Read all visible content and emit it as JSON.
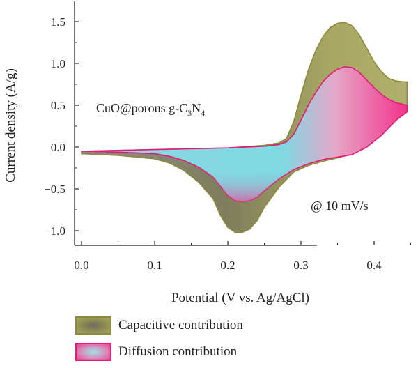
{
  "chart_data": {
    "type": "area",
    "xlabel": "Potential (V vs. Ag/AgCl)",
    "ylabel": "Current density (A/g)",
    "xlim": [
      -0.01,
      0.46
    ],
    "ylim": [
      -1.15,
      1.65
    ],
    "x_ticks": [
      0.0,
      0.1,
      0.2,
      0.3,
      0.4
    ],
    "x_tick_labels": [
      "0.0",
      "0.1",
      "0.2",
      "0.3",
      "0.4"
    ],
    "y_ticks": [
      -1.0,
      -0.5,
      0.0,
      0.5,
      1.0,
      1.5
    ],
    "y_tick_labels": [
      "−1.0",
      "−0.5",
      "0.0",
      "0.5",
      "1.0",
      "1.5"
    ],
    "grid": false,
    "annotations": {
      "material": "CuO@porous g-C3N4",
      "material_parts": {
        "base": "CuO@porous g-C",
        "sub1": "3",
        "mid": "N",
        "sub2": "4"
      },
      "scan_rate": "@ 10 mV/s"
    },
    "series": [
      {
        "name": "Capacitive contribution",
        "color": "#a9a865",
        "stroke": "#8d8a3c",
        "anodic": [
          [
            0.0,
            -0.05
          ],
          [
            0.05,
            -0.04
          ],
          [
            0.1,
            -0.03
          ],
          [
            0.15,
            -0.02
          ],
          [
            0.2,
            -0.01
          ],
          [
            0.25,
            0.02
          ],
          [
            0.27,
            0.05
          ],
          [
            0.28,
            0.1
          ],
          [
            0.29,
            0.3
          ],
          [
            0.3,
            0.62
          ],
          [
            0.31,
            0.92
          ],
          [
            0.32,
            1.15
          ],
          [
            0.33,
            1.32
          ],
          [
            0.34,
            1.43
          ],
          [
            0.35,
            1.48
          ],
          [
            0.36,
            1.49
          ],
          [
            0.37,
            1.45
          ],
          [
            0.38,
            1.34
          ],
          [
            0.39,
            1.18
          ],
          [
            0.4,
            1.02
          ],
          [
            0.41,
            0.9
          ],
          [
            0.42,
            0.82
          ],
          [
            0.43,
            0.79
          ],
          [
            0.44,
            0.78
          ],
          [
            0.445,
            0.78
          ]
        ],
        "cathodic": [
          [
            0.445,
            0.78
          ],
          [
            0.445,
            0.48
          ],
          [
            0.43,
            0.4
          ],
          [
            0.41,
            0.2
          ],
          [
            0.39,
            0.03
          ],
          [
            0.37,
            -0.08
          ],
          [
            0.35,
            -0.13
          ],
          [
            0.33,
            -0.17
          ],
          [
            0.31,
            -0.22
          ],
          [
            0.29,
            -0.3
          ],
          [
            0.27,
            -0.48
          ],
          [
            0.25,
            -0.72
          ],
          [
            0.24,
            -0.88
          ],
          [
            0.23,
            -0.98
          ],
          [
            0.22,
            -1.02
          ],
          [
            0.21,
            -1.02
          ],
          [
            0.2,
            -0.96
          ],
          [
            0.19,
            -0.82
          ],
          [
            0.18,
            -0.62
          ],
          [
            0.16,
            -0.42
          ],
          [
            0.14,
            -0.28
          ],
          [
            0.12,
            -0.19
          ],
          [
            0.1,
            -0.14
          ],
          [
            0.05,
            -0.1
          ],
          [
            0.0,
            -0.08
          ]
        ]
      },
      {
        "name": "Diffusion contribution",
        "color": "#f0408e",
        "stroke": "#e31a78",
        "anodic": [
          [
            0.0,
            -0.05
          ],
          [
            0.05,
            -0.04
          ],
          [
            0.1,
            -0.03
          ],
          [
            0.15,
            -0.02
          ],
          [
            0.2,
            -0.01
          ],
          [
            0.25,
            0.01
          ],
          [
            0.27,
            0.03
          ],
          [
            0.28,
            0.06
          ],
          [
            0.29,
            0.15
          ],
          [
            0.3,
            0.32
          ],
          [
            0.31,
            0.5
          ],
          [
            0.32,
            0.65
          ],
          [
            0.33,
            0.78
          ],
          [
            0.34,
            0.87
          ],
          [
            0.35,
            0.93
          ],
          [
            0.36,
            0.96
          ],
          [
            0.37,
            0.95
          ],
          [
            0.38,
            0.89
          ],
          [
            0.39,
            0.8
          ],
          [
            0.4,
            0.71
          ],
          [
            0.41,
            0.63
          ],
          [
            0.42,
            0.57
          ],
          [
            0.43,
            0.53
          ],
          [
            0.44,
            0.51
          ],
          [
            0.445,
            0.5
          ]
        ],
        "cathodic": [
          [
            0.445,
            0.5
          ],
          [
            0.445,
            0.42
          ],
          [
            0.43,
            0.32
          ],
          [
            0.41,
            0.14
          ],
          [
            0.39,
            0.0
          ],
          [
            0.37,
            -0.09
          ],
          [
            0.35,
            -0.12
          ],
          [
            0.33,
            -0.15
          ],
          [
            0.31,
            -0.2
          ],
          [
            0.29,
            -0.27
          ],
          [
            0.27,
            -0.38
          ],
          [
            0.25,
            -0.52
          ],
          [
            0.24,
            -0.6
          ],
          [
            0.23,
            -0.64
          ],
          [
            0.22,
            -0.65
          ],
          [
            0.21,
            -0.64
          ],
          [
            0.2,
            -0.58
          ],
          [
            0.19,
            -0.47
          ],
          [
            0.18,
            -0.36
          ],
          [
            0.16,
            -0.24
          ],
          [
            0.14,
            -0.16
          ],
          [
            0.12,
            -0.11
          ],
          [
            0.1,
            -0.08
          ],
          [
            0.05,
            -0.06
          ],
          [
            0.0,
            -0.05
          ]
        ]
      }
    ]
  }
}
